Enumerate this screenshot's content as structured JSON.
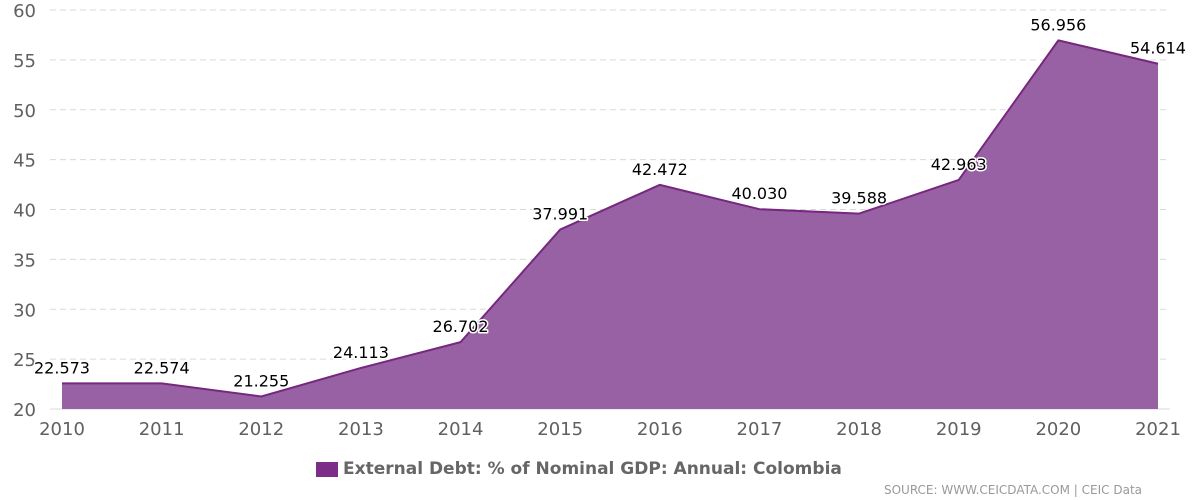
{
  "chart_data": {
    "type": "area",
    "x": [
      "2010",
      "2011",
      "2012",
      "2013",
      "2014",
      "2015",
      "2016",
      "2017",
      "2018",
      "2019",
      "2020",
      "2021"
    ],
    "series": [
      {
        "name": "External Debt: % of Nominal GDP: Annual: Colombia",
        "values": [
          22.573,
          22.574,
          21.255,
          24.113,
          26.702,
          37.991,
          42.472,
          40.03,
          39.588,
          42.963,
          56.956,
          54.614
        ],
        "labels": [
          "22.573",
          "22.574",
          "21.255",
          "24.113",
          "26.702",
          "37.991",
          "42.472",
          "40.030",
          "39.588",
          "42.963",
          "56.956",
          "54.614"
        ]
      }
    ],
    "y_ticks": [
      "20",
      "25",
      "30",
      "35",
      "40",
      "45",
      "50",
      "55",
      "60"
    ],
    "ylim": [
      20,
      60
    ],
    "grid": true,
    "legend_position": "bottom",
    "colors": {
      "area_fill": "#9861a3",
      "line": "#76287f",
      "swatch": "#7b2d87",
      "grid": "#d9d9d9"
    }
  },
  "source": "SOURCE: WWW.CEICDATA.COM | CEIC Data"
}
